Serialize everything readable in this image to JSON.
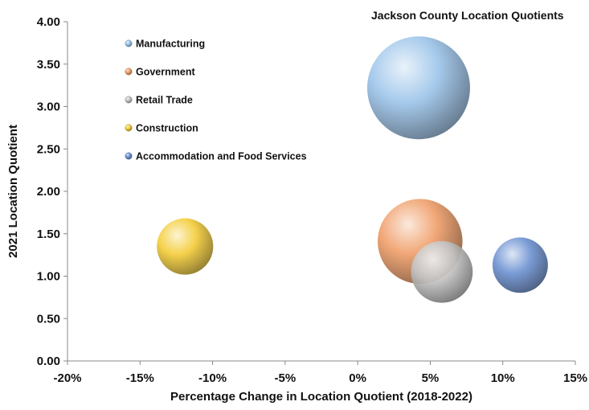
{
  "chart_data": {
    "type": "bubble",
    "title": "Jackson County Location Quotients",
    "xlabel": "Percentage Change in Location Quotient (2018-2022)",
    "ylabel": "2021 Location Quotient",
    "xlim": [
      -20,
      15
    ],
    "ylim": [
      0,
      4
    ],
    "x_ticks": [
      "-20%",
      "-15%",
      "-10%",
      "-5%",
      "0%",
      "5%",
      "10%",
      "15%"
    ],
    "y_ticks": [
      "0.00",
      "0.50",
      "1.00",
      "1.50",
      "2.00",
      "2.50",
      "3.00",
      "3.50",
      "4.00"
    ],
    "grid": false,
    "legend_position": "top-left",
    "series": [
      {
        "name": "Manufacturing",
        "x": 4.2,
        "y": 3.22,
        "size": 1.0,
        "color": "#9ec5ea"
      },
      {
        "name": "Government",
        "x": 4.3,
        "y": 1.41,
        "size": 0.68,
        "color": "#f0a06c"
      },
      {
        "name": "Retail Trade",
        "x": 5.8,
        "y": 1.05,
        "size": 0.36,
        "color": "#c4c4c4"
      },
      {
        "name": "Construction",
        "x": -11.9,
        "y": 1.35,
        "size": 0.3,
        "color": "#f4cd3c"
      },
      {
        "name": "Accommodation and Food Services",
        "x": 11.2,
        "y": 1.13,
        "size": 0.29,
        "color": "#6f93d2"
      }
    ]
  }
}
